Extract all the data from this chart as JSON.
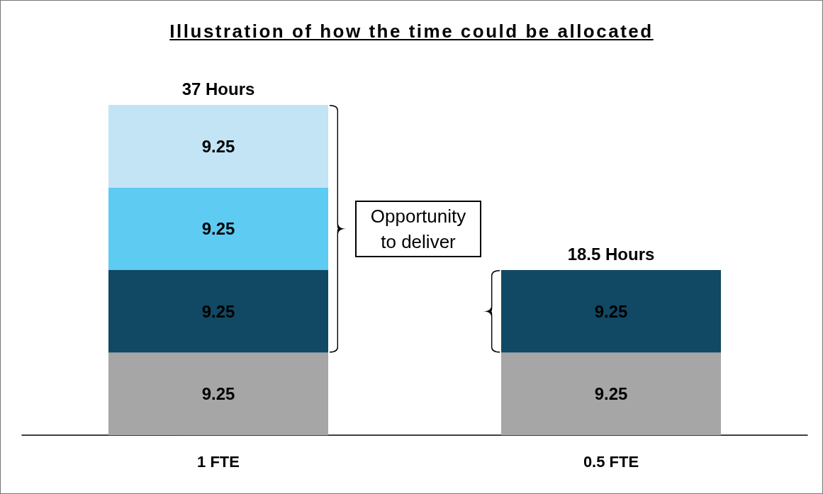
{
  "chart_data": {
    "type": "bar",
    "title": "Illustration of how the time could be allocated",
    "categories": [
      "1 FTE",
      "0.5 FTE"
    ],
    "stacked": true,
    "series": [
      {
        "color": "#a6a6a6",
        "values": [
          9.25,
          9.25
        ]
      },
      {
        "color": "#114863",
        "values": [
          9.25,
          9.25
        ]
      },
      {
        "color": "#5ecbf2",
        "values": [
          9.25,
          null
        ]
      },
      {
        "color": "#c2e4f4",
        "values": [
          9.25,
          null
        ]
      }
    ],
    "data_labels": true,
    "totals": [
      "37 Hours",
      "18.5 Hours"
    ],
    "annotations": [
      "Opportunity to deliver"
    ],
    "line_style": "solid"
  }
}
